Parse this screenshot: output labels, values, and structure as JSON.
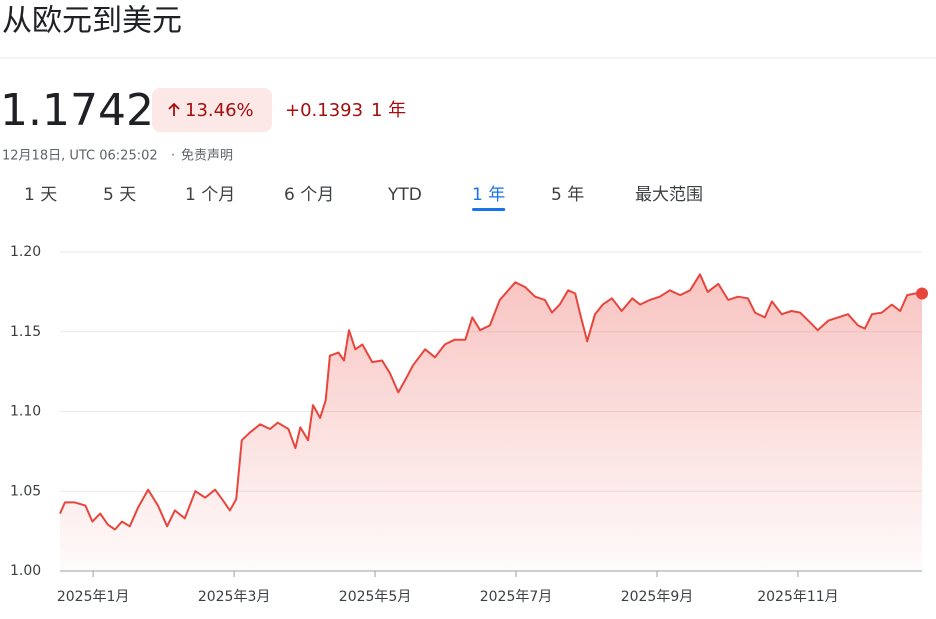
{
  "title": "从欧元到美元",
  "price": "1.1742",
  "change_pct": "13.46%",
  "change_abs": "+0.1393",
  "change_period": "1 年",
  "timestamp": "12月18日, UTC 06:25:02",
  "disclaimer": "免责声明",
  "tabs": [
    "1 天",
    "5 天",
    "1 个月",
    "6 个月",
    "YTD",
    "1 年",
    "5 年",
    "最大范围"
  ],
  "selected_tab": "1 年",
  "chart_data": {
    "type": "line",
    "color": "#e8453c",
    "grid": true,
    "x": [
      0.53,
      0.6,
      0.74,
      0.89,
      0.99,
      1.1,
      1.21,
      1.31,
      1.41,
      1.52,
      1.64,
      1.78,
      1.92,
      2.05,
      2.16,
      2.3,
      2.45,
      2.59,
      2.73,
      2.83,
      2.94,
      3.03,
      3.11,
      3.23,
      3.37,
      3.51,
      3.62,
      3.77,
      3.87,
      3.94,
      4.05,
      4.12,
      4.22,
      4.3,
      4.36,
      4.48,
      4.56,
      4.63,
      4.72,
      4.82,
      4.96,
      5.1,
      5.21,
      5.33,
      5.43,
      5.54,
      5.71,
      5.85,
      5.99,
      6.13,
      6.28,
      6.38,
      6.49,
      6.63,
      6.77,
      6.89,
      6.99,
      7.13,
      7.27,
      7.41,
      7.51,
      7.62,
      7.74,
      7.84,
      7.91,
      8.01,
      8.12,
      8.23,
      8.36,
      8.5,
      8.65,
      8.76,
      8.9,
      9.04,
      9.18,
      9.33,
      9.47,
      9.61,
      9.72,
      9.87,
      10.01,
      10.15,
      10.29,
      10.39,
      10.53,
      10.63,
      10.77,
      10.91,
      11.03,
      11.17,
      11.28,
      11.43,
      11.57,
      11.71,
      11.85,
      11.95,
      12.05,
      12.19,
      12.33,
      12.45,
      12.55,
      12.66,
      12.76
    ],
    "values": [
      1.036,
      1.043,
      1.043,
      1.041,
      1.031,
      1.036,
      1.029,
      1.026,
      1.031,
      1.028,
      1.04,
      1.051,
      1.041,
      1.028,
      1.038,
      1.033,
      1.05,
      1.046,
      1.051,
      1.045,
      1.038,
      1.045,
      1.082,
      1.087,
      1.092,
      1.089,
      1.093,
      1.089,
      1.077,
      1.09,
      1.082,
      1.104,
      1.096,
      1.107,
      1.135,
      1.137,
      1.132,
      1.151,
      1.139,
      1.142,
      1.131,
      1.132,
      1.124,
      1.112,
      1.12,
      1.129,
      1.139,
      1.134,
      1.142,
      1.145,
      1.145,
      1.159,
      1.151,
      1.154,
      1.17,
      1.176,
      1.181,
      1.178,
      1.172,
      1.17,
      1.162,
      1.167,
      1.176,
      1.174,
      1.161,
      1.144,
      1.161,
      1.167,
      1.171,
      1.163,
      1.171,
      1.167,
      1.17,
      1.172,
      1.176,
      1.173,
      1.176,
      1.186,
      1.175,
      1.18,
      1.17,
      1.172,
      1.171,
      1.162,
      1.159,
      1.169,
      1.161,
      1.163,
      1.162,
      1.156,
      1.151,
      1.157,
      1.159,
      1.161,
      1.154,
      1.152,
      1.161,
      1.162,
      1.167,
      1.163,
      1.173,
      1.174,
      1.174
    ],
    "xlim": [
      0.53,
      12.76
    ],
    "ylim": [
      1.0,
      1.2
    ],
    "yticks": [
      {
        "value": 1.0,
        "label": "1.00"
      },
      1.05,
      {
        "value": 1.1,
        "label": "1.10"
      },
      1.15,
      {
        "value": 1.2,
        "label": "1.20"
      }
    ],
    "xticks": [
      {
        "value": 1,
        "label": "2025年1月"
      },
      {
        "value": 3,
        "label": "2025年3月"
      },
      {
        "value": 5,
        "label": "2025年5月"
      },
      {
        "value": 7,
        "label": "2025年7月"
      },
      {
        "value": 9,
        "label": "2025年9月"
      },
      {
        "value": 11,
        "label": "2025年11月"
      }
    ]
  }
}
